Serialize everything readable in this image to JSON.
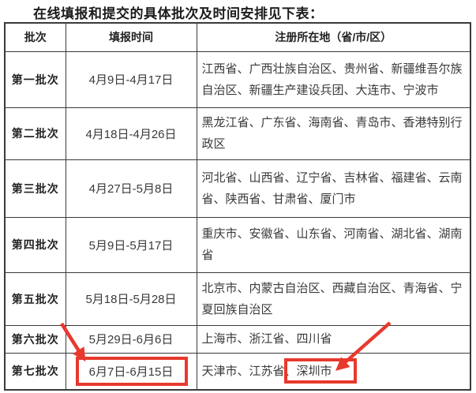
{
  "page": {
    "title": "在线填报和提交的具体批次及时间安排见下表："
  },
  "table": {
    "headers": [
      "批次",
      "填报时间",
      "注册所在地（省/市/区）"
    ],
    "rows": [
      {
        "batch": "第一批次",
        "period": "4月9日-4月17日",
        "regions": "江西省、广西壮族自治区、贵州省、新疆维吾尔族自治区、新疆生产建设兵团、大连市、宁波市"
      },
      {
        "batch": "第二批次",
        "period": "4月18日-4月26日",
        "regions": "黑龙江省、广东省、海南省、青岛市、香港特别行政区"
      },
      {
        "batch": "第三批次",
        "period": "4月27日-5月8日",
        "regions": "河北省、山西省、辽宁省、吉林省、福建省、云南省、陕西省、甘肃省、厦门市"
      },
      {
        "batch": "第四批次",
        "period": "5月9日-5月17日",
        "regions": "重庆市、安徽省、山东省、河南省、湖北省、湖南省"
      },
      {
        "batch": "第五批次",
        "period": "5月18日-5月28日",
        "regions": "北京市、内蒙古自治区、西藏自治区、青海省、宁夏回族自治区"
      },
      {
        "batch": "第六批次",
        "period": "5月29日-6月6日",
        "regions": "上海市、浙江省、四川省"
      },
      {
        "batch": "第七批次",
        "period": "6月7日-6月15日",
        "regions": "天津市、江苏省、深圳市"
      }
    ]
  },
  "annotations": {
    "color": "#e8392e",
    "highlighted_period": "6月7日-6月15日",
    "highlighted_city": "深圳市",
    "arrow_targets": [
      "seventh-batch-period",
      "shenzhen-city"
    ]
  }
}
